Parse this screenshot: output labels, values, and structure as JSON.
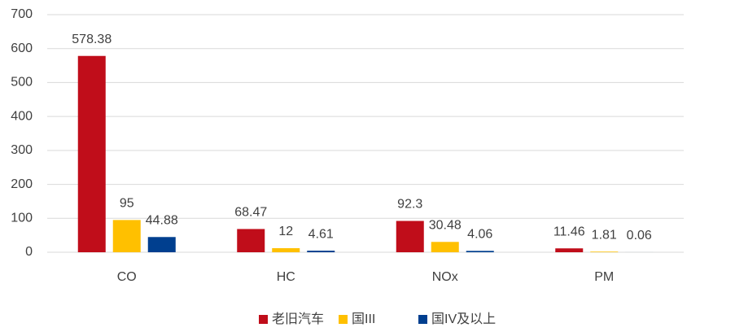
{
  "chart_data": {
    "type": "bar",
    "categories": [
      "CO",
      "HC",
      "NOx",
      "PM"
    ],
    "series": [
      {
        "name": "老旧汽车",
        "color": "#c00d1a",
        "values": [
          578.38,
          68.47,
          92.3,
          11.46
        ]
      },
      {
        "name": "国III",
        "color": "#ffc000",
        "values": [
          95,
          12,
          30.48,
          1.81
        ]
      },
      {
        "name": "国IV及以上",
        "color": "#003f8f",
        "values": [
          44.88,
          4.61,
          4.06,
          0.06
        ]
      }
    ],
    "ylim": [
      0,
      700
    ],
    "yticks": [
      0,
      100,
      200,
      300,
      400,
      500,
      600,
      700
    ],
    "grid": true,
    "legend": "bottom"
  }
}
